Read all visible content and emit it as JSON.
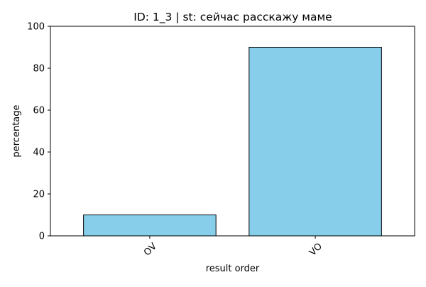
{
  "chart_data": {
    "type": "bar",
    "title": "ID: 1_3 | st: сейчас расскажу маме",
    "xlabel": "result order",
    "ylabel": "percentage",
    "categories": [
      "OV",
      "VO"
    ],
    "values": [
      10,
      90
    ],
    "ylim": [
      0,
      100
    ],
    "yticks": [
      "0",
      "20",
      "40",
      "60",
      "80",
      "100"
    ],
    "grid": false,
    "bar_color": "#87ceeb",
    "edge_color": "#000000"
  }
}
